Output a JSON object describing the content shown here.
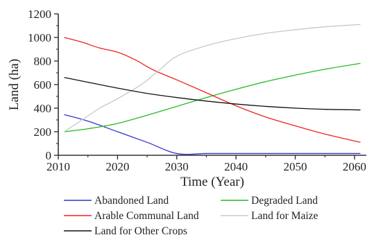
{
  "chart_data": {
    "type": "line",
    "title": "",
    "xlabel": "Time (Year)",
    "ylabel": "Land (ha)",
    "xlim": [
      2010,
      2062
    ],
    "ylim": [
      0,
      1200
    ],
    "xticks": [
      2010,
      2020,
      2030,
      2040,
      2050,
      2060
    ],
    "yticks": [
      0,
      200,
      400,
      600,
      800,
      1000,
      1200
    ],
    "grid": false,
    "legend": "bottom",
    "series": [
      {
        "name": "Abandoned Land",
        "color": "#3333cc",
        "points": [
          [
            2011,
            345
          ],
          [
            2015,
            290
          ],
          [
            2020,
            200
          ],
          [
            2025,
            110
          ],
          [
            2030,
            15
          ],
          [
            2035,
            15
          ],
          [
            2040,
            15
          ],
          [
            2045,
            15
          ],
          [
            2050,
            15
          ],
          [
            2055,
            15
          ],
          [
            2061,
            15
          ]
        ]
      },
      {
        "name": "Degraded Land",
        "color": "#22bb22",
        "points": [
          [
            2011,
            200
          ],
          [
            2015,
            225
          ],
          [
            2020,
            270
          ],
          [
            2025,
            340
          ],
          [
            2030,
            415
          ],
          [
            2035,
            490
          ],
          [
            2040,
            560
          ],
          [
            2045,
            625
          ],
          [
            2050,
            680
          ],
          [
            2055,
            730
          ],
          [
            2061,
            780
          ]
        ]
      },
      {
        "name": "Arable Communal Land",
        "color": "#ee2222",
        "points": [
          [
            2011,
            1000
          ],
          [
            2014,
            960
          ],
          [
            2017,
            910
          ],
          [
            2020,
            875
          ],
          [
            2023,
            810
          ],
          [
            2026,
            725
          ],
          [
            2030,
            640
          ],
          [
            2035,
            530
          ],
          [
            2040,
            420
          ],
          [
            2045,
            325
          ],
          [
            2050,
            250
          ],
          [
            2055,
            180
          ],
          [
            2061,
            110
          ]
        ]
      },
      {
        "name": "Land for Maize",
        "color": "#c8c8c8",
        "points": [
          [
            2011,
            200
          ],
          [
            2014,
            300
          ],
          [
            2017,
            400
          ],
          [
            2020,
            480
          ],
          [
            2024,
            600
          ],
          [
            2027,
            720
          ],
          [
            2030,
            840
          ],
          [
            2035,
            930
          ],
          [
            2040,
            990
          ],
          [
            2045,
            1035
          ],
          [
            2050,
            1065
          ],
          [
            2055,
            1090
          ],
          [
            2061,
            1110
          ]
        ]
      },
      {
        "name": "Land for Other Crops",
        "color": "#111111",
        "points": [
          [
            2011,
            660
          ],
          [
            2015,
            620
          ],
          [
            2020,
            570
          ],
          [
            2025,
            525
          ],
          [
            2030,
            490
          ],
          [
            2035,
            460
          ],
          [
            2040,
            435
          ],
          [
            2045,
            415
          ],
          [
            2050,
            400
          ],
          [
            2055,
            390
          ],
          [
            2061,
            385
          ]
        ]
      }
    ]
  }
}
